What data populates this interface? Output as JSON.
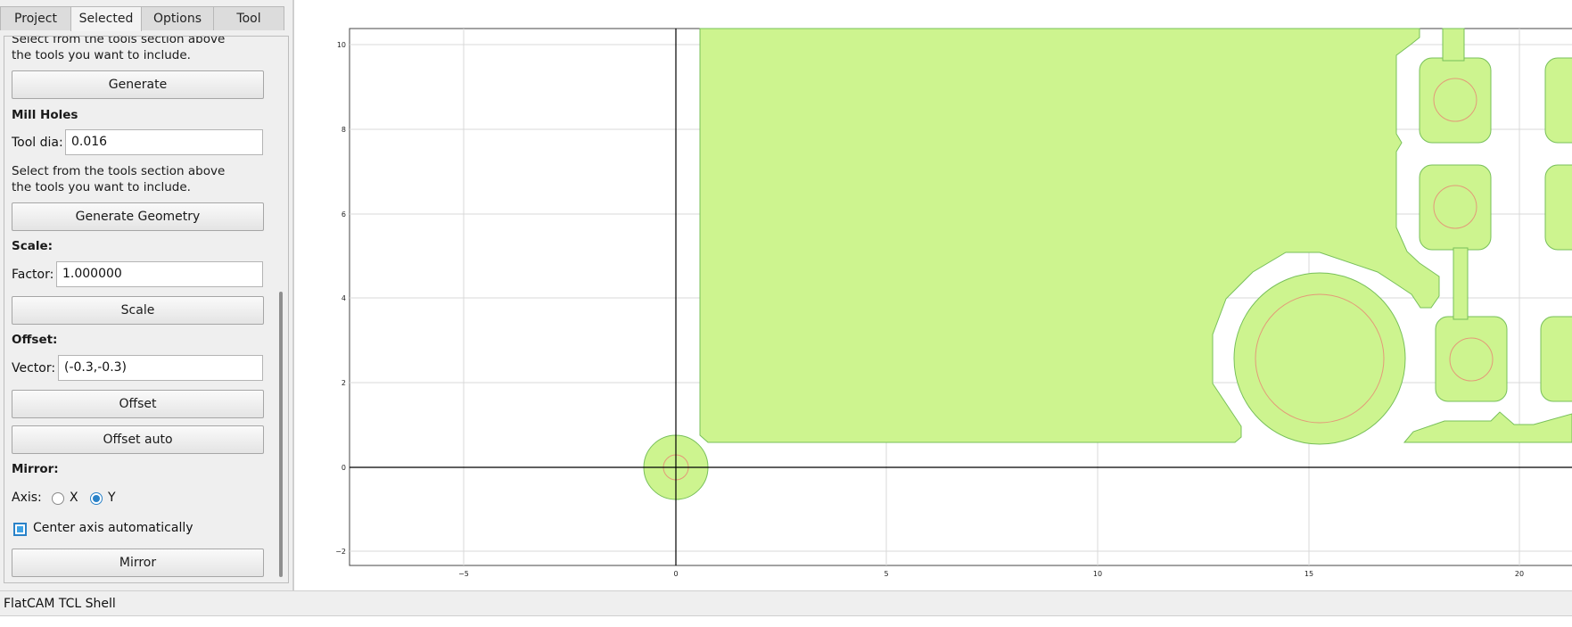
{
  "tabs": [
    {
      "label": "Project"
    },
    {
      "label": "Selected"
    },
    {
      "label": "Options"
    },
    {
      "label": "Tool"
    }
  ],
  "panel": {
    "intro_text_1": "Select from the tools section above",
    "intro_text_2": "the tools you want to include.",
    "generate_label": "Generate",
    "mill_holes_heading": "Mill Holes",
    "tool_dia_label": "Tool dia:",
    "tool_dia_value": "0.016",
    "mill_text_1": "Select from the tools section above",
    "mill_text_2": "the tools you want to include.",
    "generate_geometry_label": "Generate Geometry",
    "scale_heading": "Scale:",
    "factor_label": "Factor:",
    "factor_value": "1.000000",
    "scale_button_label": "Scale",
    "offset_heading": "Offset:",
    "vector_label": "Vector:",
    "vector_value": "(-0.3,-0.3)",
    "offset_button_label": "Offset",
    "offset_auto_label": "Offset auto",
    "mirror_heading": "Mirror:",
    "axis_label": "Axis:",
    "axis_x_label": "X",
    "axis_y_label": "Y",
    "axis_selected": "Y",
    "center_axis_label": "Center axis automatically",
    "center_axis_checked": true,
    "mirror_button_label": "Mirror"
  },
  "plot": {
    "x_ticks": [
      "−5",
      "0",
      "5",
      "10",
      "15",
      "20"
    ],
    "y_ticks": [
      "10",
      "8",
      "6",
      "4",
      "2",
      "0",
      "−2"
    ],
    "fill_color": "#cdf48f",
    "outline_color": "#78c05a",
    "hole_color": "#e39a78"
  },
  "shell": {
    "title": "FlatCAM TCL Shell"
  }
}
